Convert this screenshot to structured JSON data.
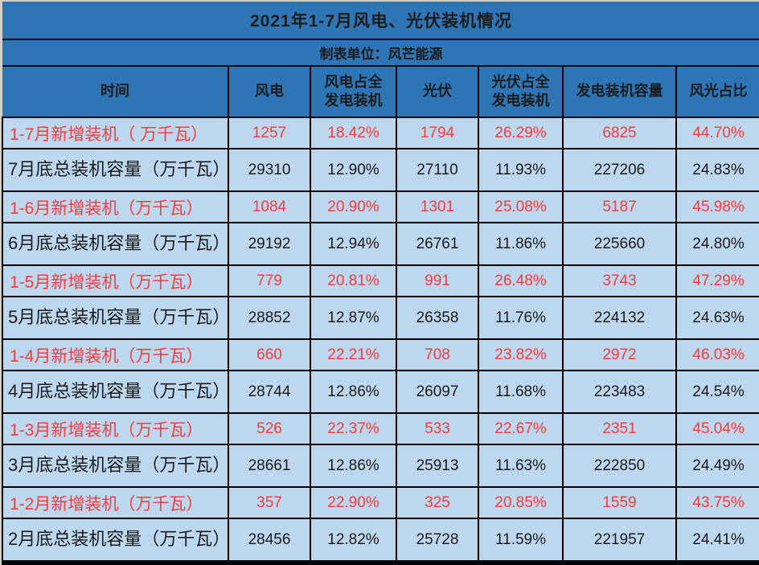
{
  "colors": {
    "header_bg": "#2E75B6",
    "body_bg": "#BDD7EE",
    "grid": "#000000",
    "highlight_red": "#F93B3B",
    "text_dark": "#1C1C1C"
  },
  "chart_data": {
    "type": "table",
    "title": "2021年1-7月风电、光伏装机情况",
    "source": "制表单位：风芒能源",
    "layout_hints": {
      "header_text_color": "black on medium blue",
      "body_background": "light blue",
      "highlight_rows": "new-installation rows shown in red"
    },
    "columns": [
      "时间",
      "风电",
      "风电占全发电装机",
      "光伏",
      "光伏占全发电装机",
      "发电装机容量",
      "风光占比"
    ],
    "rows": [
      {
        "label": "1-7月新增装机（ 万千瓦）",
        "highlight": true,
        "values": [
          "1257",
          "18.42%",
          "1794",
          "26.29%",
          "6825",
          "44.70%"
        ]
      },
      {
        "label": "7月底总装机容量（万千瓦）",
        "highlight": false,
        "values": [
          "29310",
          "12.90%",
          "27110",
          "11.93%",
          "227206",
          "24.83%"
        ]
      },
      {
        "label": "1-6月新增装机（万千瓦）",
        "highlight": true,
        "values": [
          "1084",
          "20.90%",
          "1301",
          "25.08%",
          "5187",
          "45.98%"
        ]
      },
      {
        "label": "6月底总装机容量（万千瓦）",
        "highlight": false,
        "values": [
          "29192",
          "12.94%",
          "26761",
          "11.86%",
          "225660",
          "24.80%"
        ]
      },
      {
        "label": "1-5月新增装机（万千瓦）",
        "highlight": true,
        "values": [
          "779",
          "20.81%",
          "991",
          "26.48%",
          "3743",
          "47.29%"
        ]
      },
      {
        "label": "5月底总装机容量（万千瓦）",
        "highlight": false,
        "values": [
          "28852",
          "12.87%",
          "26358",
          "11.76%",
          "224132",
          "24.63%"
        ]
      },
      {
        "label": "1-4月新增装机（万千瓦）",
        "highlight": true,
        "values": [
          "660",
          "22.21%",
          "708",
          "23.82%",
          "2972",
          "46.03%"
        ]
      },
      {
        "label": "4月底总装机容量（万千瓦）",
        "highlight": false,
        "values": [
          "28744",
          "12.86%",
          "26097",
          "11.68%",
          "223483",
          "24.54%"
        ]
      },
      {
        "label": "1-3月新增装机（万千瓦）",
        "highlight": true,
        "values": [
          "526",
          "22.37%",
          "533",
          "22.67%",
          "2351",
          "45.04%"
        ]
      },
      {
        "label": "3月底总装机容量（万千瓦）",
        "highlight": false,
        "values": [
          "28661",
          "12.86%",
          "25913",
          "11.63%",
          "222850",
          "24.49%"
        ]
      },
      {
        "label": "1-2月新增装机（万千瓦）",
        "highlight": true,
        "values": [
          "357",
          "22.90%",
          "325",
          "20.85%",
          "1559",
          "43.75%"
        ]
      },
      {
        "label": "2月底总装机容量（万千瓦）",
        "highlight": false,
        "values": [
          "28456",
          "12.82%",
          "25728",
          "11.59%",
          "221957",
          "24.41%"
        ]
      }
    ]
  }
}
